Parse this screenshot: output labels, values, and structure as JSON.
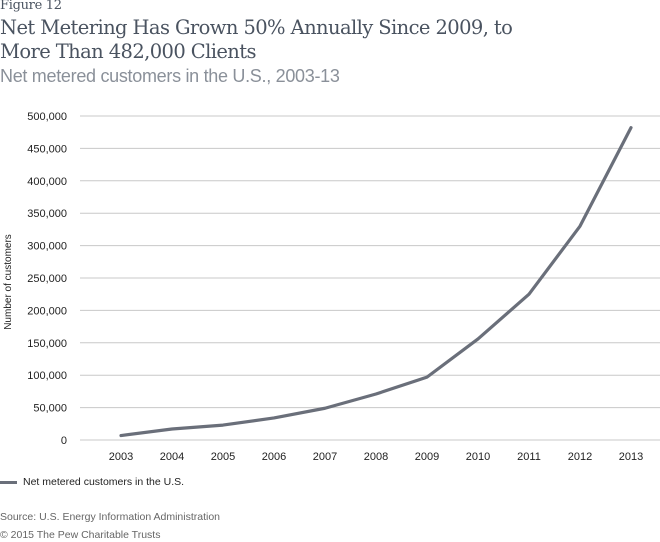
{
  "figure_label": "Figure 12",
  "title": "Net Metering Has Grown 50% Annually Since 2009, to More Than 482,000 Clients",
  "subtitle": "Net metered customers in the U.S., 2003-13",
  "legend_label": "Net metered customers in the U.S.",
  "source": "Source: U.S. Energy Information Administration",
  "copyright": "© 2015 The Pew Charitable Trusts",
  "chart_data": {
    "type": "line",
    "title": "Net Metering Has Grown 50% Annually Since 2009, to More Than 482,000 Clients",
    "subtitle": "Net metered customers in the U.S., 2003-13",
    "xlabel": "",
    "ylabel": "Number of customers",
    "categories": [
      "2003",
      "2004",
      "2005",
      "2006",
      "2007",
      "2008",
      "2009",
      "2010",
      "2011",
      "2012",
      "2013"
    ],
    "series": [
      {
        "name": "Net metered customers in the U.S.",
        "color": "#6a6f7a",
        "values": [
          6900,
          17000,
          23000,
          34000,
          49000,
          71000,
          97000,
          156000,
          225000,
          330000,
          482000
        ]
      }
    ],
    "ylim": [
      0,
      500000
    ],
    "yticks": [
      0,
      50000,
      100000,
      150000,
      200000,
      250000,
      300000,
      350000,
      400000,
      450000,
      500000
    ],
    "ytick_labels": [
      "0",
      "50,000",
      "100,000",
      "150,000",
      "200,000",
      "250,000",
      "300,000",
      "350,000",
      "400,000",
      "450,000",
      "500,000"
    ],
    "grid": true,
    "legend_position": "bottom-left"
  }
}
